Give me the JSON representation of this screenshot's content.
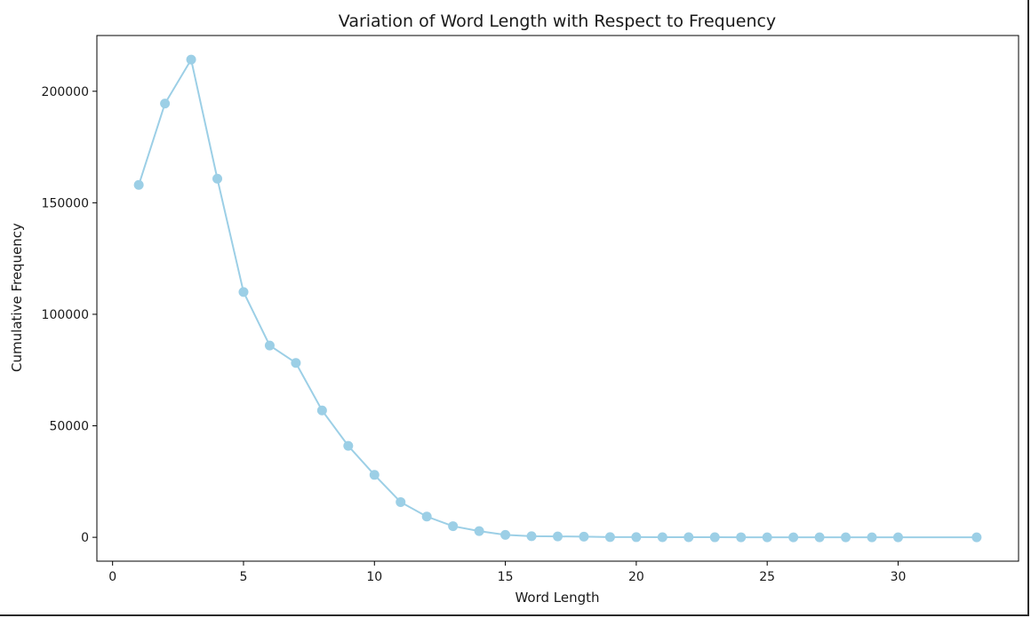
{
  "chart_data": {
    "type": "line",
    "title": "Variation of Word Length with Respect to Frequency",
    "xlabel": "Word Length",
    "ylabel": "Cumulative Frequency",
    "xlim": [
      -0.6,
      34.6
    ],
    "ylim": [
      -10700,
      225000
    ],
    "xticks": [
      0,
      5,
      10,
      15,
      20,
      25,
      30
    ],
    "yticks": [
      0,
      50000,
      100000,
      150000,
      200000
    ],
    "grid": false,
    "marker": "circle",
    "color": "#9ccfe6",
    "series": [
      {
        "x": [
          1,
          2,
          3,
          4,
          5,
          6,
          7,
          8,
          9,
          10,
          11,
          12,
          13,
          14,
          15,
          16,
          17,
          18,
          19,
          20,
          21,
          22,
          23,
          24,
          25,
          26,
          27,
          28,
          29,
          30,
          33
        ],
        "y": [
          158000,
          194500,
          214200,
          160800,
          110000,
          86000,
          78200,
          56900,
          41000,
          28000,
          15800,
          9300,
          5000,
          2800,
          1100,
          500,
          400,
          300,
          100,
          80,
          60,
          40,
          30,
          20,
          15,
          10,
          8,
          6,
          5,
          4,
          2
        ]
      }
    ]
  }
}
